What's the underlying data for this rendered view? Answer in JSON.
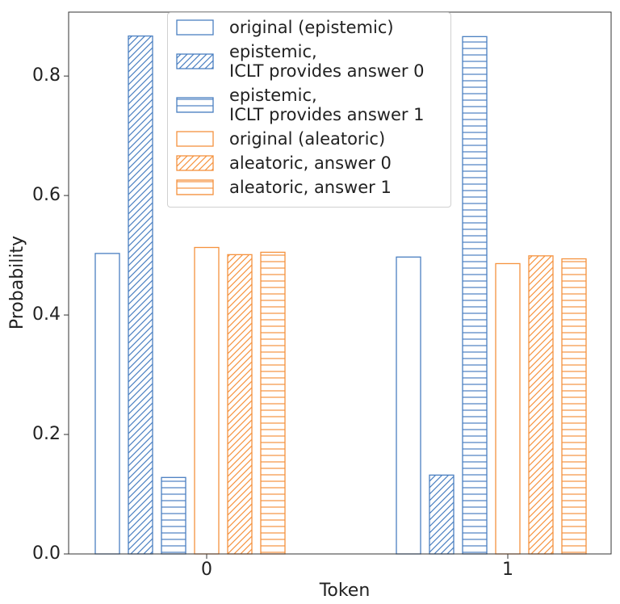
{
  "chart_data": {
    "type": "bar",
    "x_label": "Token",
    "y_label": "Probability",
    "categories": [
      "0",
      "1"
    ],
    "ylim": [
      0,
      0.907
    ],
    "yticks": [
      0.0,
      0.2,
      0.4,
      0.6,
      0.8
    ],
    "series": [
      {
        "name": "original (epistemic)",
        "color": "#4a7fc1",
        "hatch": "",
        "values": [
          0.503,
          0.497
        ]
      },
      {
        "name": "epistemic,\nICLT provides answer 0",
        "color": "#4a7fc1",
        "hatch": "/",
        "values": [
          0.867,
          0.132
        ]
      },
      {
        "name": "epistemic,\nICLT provides answer 1",
        "color": "#4a7fc1",
        "hatch": "-",
        "values": [
          0.128,
          0.866
        ]
      },
      {
        "name": "original (aleatoric)",
        "color": "#f5923e",
        "hatch": "",
        "values": [
          0.513,
          0.486
        ]
      },
      {
        "name": "aleatoric, answer 0",
        "color": "#f5923e",
        "hatch": "/",
        "values": [
          0.501,
          0.499
        ]
      },
      {
        "name": "aleatoric, answer 1",
        "color": "#f5923e",
        "hatch": "-",
        "values": [
          0.505,
          0.494
        ]
      }
    ]
  }
}
